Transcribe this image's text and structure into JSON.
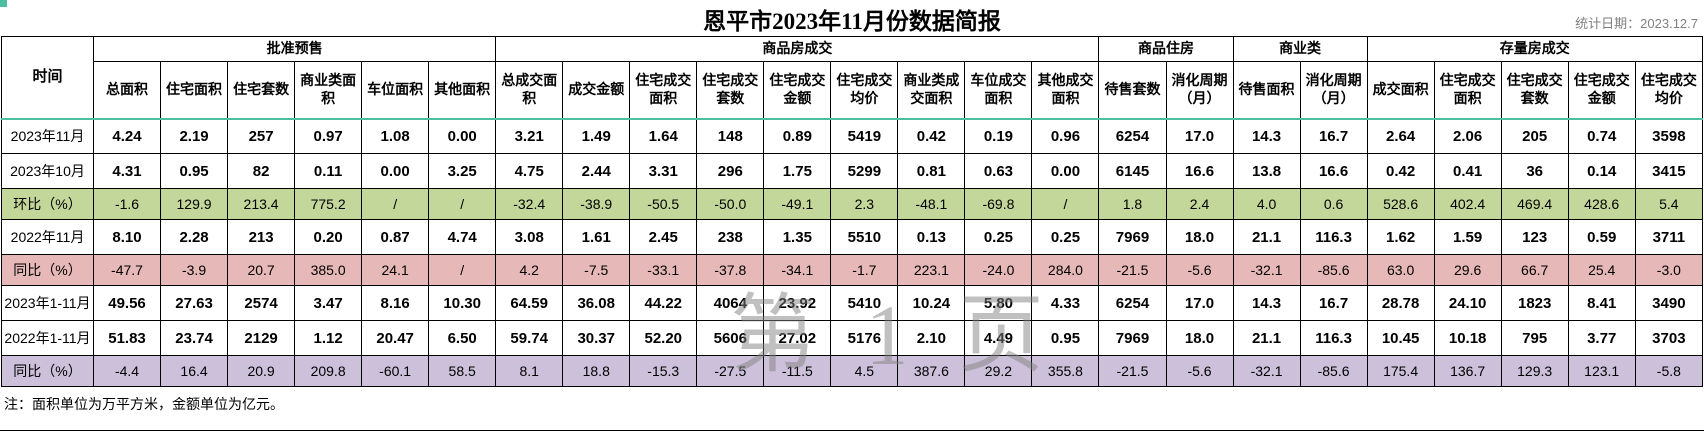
{
  "page": {
    "title": "恩平市2023年11月份数据简报",
    "stat_date": "统计日期：2023.12.7",
    "note": "注：面积单位为万平方米，金额单位为亿元。",
    "watermark": "第 1 页"
  },
  "table": {
    "time_header": "时间",
    "groups": [
      {
        "label": "批准预售",
        "cols": [
          "总面积",
          "住宅面积",
          "住宅套数",
          "商业类面积",
          "车位面积",
          "其他面积"
        ]
      },
      {
        "label": "商品房成交",
        "cols": [
          "总成交面积",
          "成交金额",
          "住宅成交面积",
          "住宅成交套数",
          "住宅成交金额",
          "住宅成交均价",
          "商业类成交面积",
          "车位成交面积",
          "其他成交面积"
        ]
      },
      {
        "label": "商品住房",
        "cols": [
          "待售套数",
          "消化周期（月）"
        ]
      },
      {
        "label": "商业类",
        "cols": [
          "待售面积",
          "消化周期（月）"
        ]
      },
      {
        "label": "存量房成交",
        "cols": [
          "成交面积",
          "住宅成交面积",
          "住宅成交套数",
          "住宅成交金额",
          "住宅成交均价"
        ]
      }
    ],
    "rows": [
      {
        "label": "2023年11月",
        "type": "data",
        "values": [
          "4.24",
          "2.19",
          "257",
          "0.97",
          "1.08",
          "0.00",
          "3.21",
          "1.49",
          "1.64",
          "148",
          "0.89",
          "5419",
          "0.42",
          "0.19",
          "0.96",
          "6254",
          "17.0",
          "14.3",
          "16.7",
          "2.64",
          "2.06",
          "205",
          "0.74",
          "3598"
        ]
      },
      {
        "label": "2023年10月",
        "type": "data",
        "values": [
          "4.31",
          "0.95",
          "82",
          "0.11",
          "0.00",
          "3.25",
          "4.75",
          "2.44",
          "3.31",
          "296",
          "1.75",
          "5299",
          "0.81",
          "0.63",
          "0.00",
          "6145",
          "16.6",
          "13.8",
          "16.6",
          "0.42",
          "0.41",
          "36",
          "0.14",
          "3415"
        ]
      },
      {
        "label": "环比（%）",
        "type": "mom",
        "values": [
          "-1.6",
          "129.9",
          "213.4",
          "775.2",
          "/",
          "/",
          "-32.4",
          "-38.9",
          "-50.5",
          "-50.0",
          "-49.1",
          "2.3",
          "-48.1",
          "-69.8",
          "/",
          "1.8",
          "2.4",
          "4.0",
          "0.6",
          "528.6",
          "402.4",
          "469.4",
          "428.6",
          "5.4"
        ]
      },
      {
        "label": "2022年11月",
        "type": "data",
        "values": [
          "8.10",
          "2.28",
          "213",
          "0.20",
          "0.87",
          "4.74",
          "3.08",
          "1.61",
          "2.45",
          "238",
          "1.35",
          "5510",
          "0.13",
          "0.25",
          "0.25",
          "7969",
          "18.0",
          "21.1",
          "116.3",
          "1.62",
          "1.59",
          "123",
          "0.59",
          "3711"
        ]
      },
      {
        "label": "同比（%）",
        "type": "yoy",
        "values": [
          "-47.7",
          "-3.9",
          "20.7",
          "385.0",
          "24.1",
          "/",
          "4.2",
          "-7.5",
          "-33.1",
          "-37.8",
          "-34.1",
          "-1.7",
          "223.1",
          "-24.0",
          "284.0",
          "-21.5",
          "-5.6",
          "-32.1",
          "-85.6",
          "63.0",
          "29.6",
          "66.7",
          "25.4",
          "-3.0"
        ]
      },
      {
        "label": "2023年1-11月",
        "type": "data",
        "values": [
          "49.56",
          "27.63",
          "2574",
          "3.47",
          "8.16",
          "10.30",
          "64.59",
          "36.08",
          "44.22",
          "4064",
          "23.92",
          "5410",
          "10.24",
          "5.80",
          "4.33",
          "6254",
          "17.0",
          "14.3",
          "16.7",
          "28.78",
          "24.10",
          "1823",
          "8.41",
          "3490"
        ]
      },
      {
        "label": "2022年1-11月",
        "type": "data",
        "values": [
          "51.83",
          "23.74",
          "2129",
          "1.12",
          "20.47",
          "6.50",
          "59.74",
          "30.37",
          "52.20",
          "5606",
          "27.02",
          "5176",
          "2.10",
          "4.49",
          "0.95",
          "7969",
          "18.0",
          "21.1",
          "116.3",
          "10.45",
          "10.18",
          "795",
          "3.77",
          "3703"
        ]
      },
      {
        "label": "同比（%）",
        "type": "yoy2",
        "values": [
          "-4.4",
          "16.4",
          "20.9",
          "209.8",
          "-60.1",
          "58.5",
          "8.1",
          "18.8",
          "-15.3",
          "-27.5",
          "-11.5",
          "4.5",
          "387.6",
          "29.2",
          "355.8",
          "-21.5",
          "-5.6",
          "-32.1",
          "-85.6",
          "175.4",
          "136.7",
          "129.3",
          "123.1",
          "-5.8"
        ]
      }
    ]
  },
  "colors": {
    "mom_row_bg": "#c4d79b",
    "yoy_row_bg": "#e6b8b7",
    "yoy2_row_bg": "#ccc0da",
    "header_accent_line": "#4cbfa0",
    "date_text": "#808080",
    "watermark_text": "#828282"
  }
}
